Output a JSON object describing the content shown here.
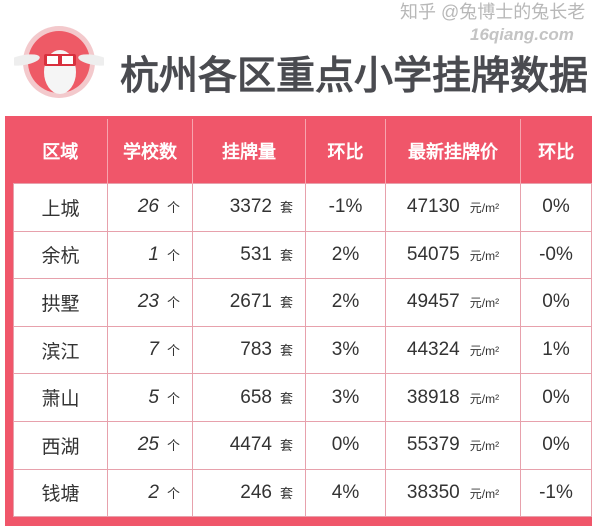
{
  "title": "杭州各区重点小学挂牌数据",
  "colors": {
    "accent": "#f0566a",
    "text": "#333333",
    "title": "#4a4b50"
  },
  "table": {
    "headers": [
      "区域",
      "学校数",
      "挂牌量",
      "环比",
      "最新挂牌价",
      "环比"
    ],
    "count_unit": "个",
    "listing_unit": "套",
    "price_unit": "元/m²",
    "rows": [
      {
        "district": "上城",
        "schools": "26",
        "listings": "3372",
        "listings_mom": "-1%",
        "price": "47130",
        "price_mom": "0%"
      },
      {
        "district": "余杭",
        "schools": "1",
        "listings": "531",
        "listings_mom": "2%",
        "price": "54075",
        "price_mom": "-0%"
      },
      {
        "district": "拱墅",
        "schools": "23",
        "listings": "2671",
        "listings_mom": "2%",
        "price": "49457",
        "price_mom": "0%"
      },
      {
        "district": "滨江",
        "schools": "7",
        "listings": "783",
        "listings_mom": "3%",
        "price": "44324",
        "price_mom": "1%"
      },
      {
        "district": "萧山",
        "schools": "5",
        "listings": "658",
        "listings_mom": "3%",
        "price": "38918",
        "price_mom": "0%"
      },
      {
        "district": "西湖",
        "schools": "25",
        "listings": "4474",
        "listings_mom": "0%",
        "price": "55379",
        "price_mom": "0%"
      },
      {
        "district": "钱塘",
        "schools": "2",
        "listings": "246",
        "listings_mom": "4%",
        "price": "38350",
        "price_mom": "-1%"
      }
    ]
  },
  "watermark": {
    "line1": "知乎 @兔博士的兔长老",
    "line2": "16qiang.com"
  }
}
